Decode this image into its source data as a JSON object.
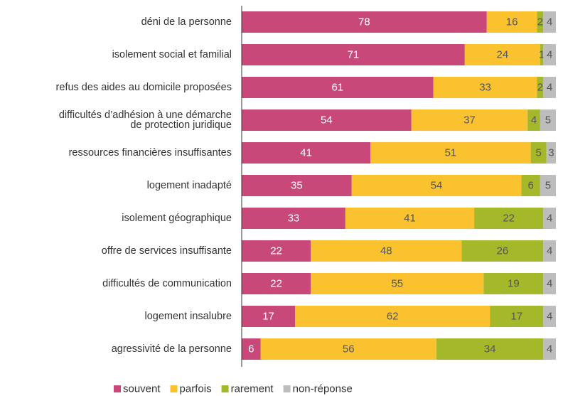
{
  "chart_data": {
    "type": "stacked-bar-horizontal",
    "categories": [
      "déni de la personne",
      "isolement social et familial",
      "refus des aides au domicile proposées",
      "difficultés d’adhésion à une démarche de protection juridique",
      "ressources financières insuffisantes",
      "logement inadapté",
      "isolement géographique",
      "offre de services insuffisante",
      "difficultés de communication",
      "logement insalubre",
      "agressivité de la personne"
    ],
    "series": [
      {
        "name": "souvent",
        "color": "#c9487a",
        "values": [
          78,
          71,
          61,
          54,
          41,
          35,
          33,
          22,
          22,
          17,
          6
        ]
      },
      {
        "name": "parfois",
        "color": "#f9c22e",
        "values": [
          16,
          24,
          33,
          37,
          51,
          54,
          41,
          48,
          55,
          62,
          56
        ]
      },
      {
        "name": "rarement",
        "color": "#a5b82a",
        "values": [
          2,
          1,
          2,
          4,
          5,
          6,
          22,
          26,
          19,
          17,
          34
        ]
      },
      {
        "name": "non-réponse",
        "color": "#bdbdbd",
        "values": [
          4,
          4,
          4,
          5,
          3,
          5,
          4,
          4,
          4,
          4,
          4
        ]
      }
    ],
    "xlim": [
      0,
      100
    ]
  }
}
